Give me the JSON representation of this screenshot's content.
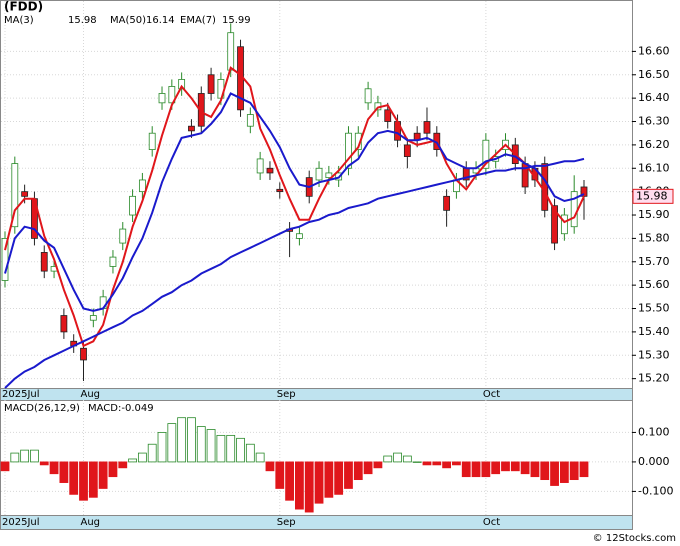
{
  "chart_data": {
    "type": "candlestick",
    "title": "(FDD)",
    "macd_title": "MACD(26,12,9)",
    "macd_label": "MACD:-0.049",
    "watermark": "© 12Stocks.com",
    "categories": [
      "2025Jul",
      null,
      null,
      null,
      null,
      null,
      null,
      null,
      "Aug",
      null,
      null,
      null,
      null,
      null,
      null,
      null,
      null,
      null,
      null,
      null,
      null,
      null,
      null,
      null,
      null,
      null,
      null,
      null,
      "Sep",
      null,
      null,
      null,
      null,
      null,
      null,
      null,
      null,
      null,
      null,
      null,
      null,
      null,
      null,
      null,
      null,
      null,
      null,
      null,
      null,
      "Oct",
      null,
      null,
      null,
      null,
      null,
      null,
      null,
      null,
      null,
      null
    ],
    "ohlc": {
      "open": [
        15.62,
        15.85,
        16.0,
        15.97,
        15.74,
        15.66,
        15.47,
        15.36,
        15.33,
        15.45,
        15.5,
        15.68,
        15.78,
        15.9,
        16.0,
        16.18,
        16.38,
        16.38,
        16.44,
        16.28,
        16.42,
        16.5,
        16.4,
        16.52,
        16.62,
        16.28,
        16.08,
        16.1,
        16.01,
        15.84,
        15.8,
        16.06,
        16.05,
        16.06,
        16.05,
        16.1,
        16.18,
        16.38,
        16.35,
        16.35,
        16.3,
        16.2,
        16.25,
        16.3,
        16.25,
        15.98,
        16.0,
        16.1,
        16.08,
        16.1,
        16.13,
        16.18,
        16.2,
        16.12,
        16.1,
        16.12,
        15.94,
        15.82,
        15.85,
        16.02
      ],
      "high": [
        15.83,
        16.15,
        16.03,
        16.0,
        15.77,
        15.71,
        15.5,
        15.39,
        15.36,
        15.5,
        15.58,
        15.75,
        15.87,
        16.01,
        16.08,
        16.28,
        16.45,
        16.48,
        16.51,
        16.31,
        16.45,
        16.53,
        16.51,
        16.72,
        16.65,
        16.36,
        16.17,
        16.13,
        16.04,
        15.87,
        15.85,
        16.09,
        16.13,
        16.11,
        16.11,
        16.28,
        16.28,
        16.47,
        16.41,
        16.38,
        16.33,
        16.23,
        16.28,
        16.36,
        16.28,
        16.01,
        16.08,
        16.13,
        16.13,
        16.25,
        16.18,
        16.25,
        16.23,
        16.15,
        16.13,
        16.15,
        15.97,
        15.93,
        16.07,
        16.05
      ],
      "low": [
        15.59,
        15.82,
        15.95,
        15.77,
        15.63,
        15.63,
        15.37,
        15.31,
        15.19,
        15.42,
        15.47,
        15.65,
        15.75,
        15.87,
        15.97,
        16.15,
        16.35,
        16.35,
        16.41,
        16.23,
        16.25,
        16.39,
        16.37,
        16.49,
        16.32,
        16.25,
        16.05,
        16.05,
        15.97,
        15.72,
        15.77,
        15.95,
        16.02,
        16.03,
        16.02,
        16.07,
        16.15,
        16.35,
        16.32,
        16.27,
        16.19,
        16.1,
        16.19,
        16.22,
        16.15,
        15.85,
        15.97,
        16.02,
        16.05,
        16.07,
        16.1,
        16.15,
        16.09,
        15.99,
        16.02,
        15.89,
        15.75,
        15.79,
        15.82,
        15.88
      ],
      "close": [
        15.8,
        16.12,
        15.98,
        15.8,
        15.66,
        15.68,
        15.4,
        15.34,
        15.28,
        15.47,
        15.55,
        15.72,
        15.84,
        15.98,
        16.05,
        16.25,
        16.42,
        16.45,
        16.48,
        16.26,
        16.28,
        16.42,
        16.48,
        16.68,
        16.35,
        16.33,
        16.14,
        16.08,
        16.0,
        15.83,
        15.82,
        15.98,
        16.1,
        16.08,
        16.08,
        16.25,
        16.25,
        16.44,
        16.38,
        16.3,
        16.22,
        16.15,
        16.22,
        16.25,
        16.18,
        15.92,
        16.05,
        16.05,
        16.1,
        16.22,
        16.15,
        16.22,
        16.12,
        16.02,
        16.05,
        15.92,
        15.78,
        15.9,
        16.0,
        15.98
      ],
      "up_color": "#2a8a2a",
      "down_color": "#e0161b"
    },
    "series": [
      {
        "name": "MA(3)",
        "color": "#e0161b",
        "values": [
          15.75,
          15.92,
          15.97,
          15.97,
          15.81,
          15.71,
          15.58,
          15.47,
          15.34,
          15.36,
          15.43,
          15.58,
          15.7,
          15.85,
          15.96,
          16.09,
          16.24,
          16.37,
          16.45,
          16.4,
          16.34,
          16.32,
          16.39,
          16.53,
          16.5,
          16.45,
          16.27,
          16.18,
          16.07,
          15.97,
          15.88,
          15.88,
          15.97,
          16.05,
          16.09,
          16.14,
          16.19,
          16.31,
          16.36,
          16.37,
          16.3,
          16.22,
          16.2,
          16.21,
          16.22,
          16.12,
          16.05,
          16.01,
          16.07,
          16.12,
          16.16,
          16.2,
          16.16,
          16.12,
          16.06,
          16.0,
          15.92,
          15.87,
          15.89,
          15.98
        ]
      },
      {
        "name": "MA(50)",
        "color": "#1a1acc",
        "values": [
          15.16,
          15.2,
          15.23,
          15.25,
          15.28,
          15.3,
          15.32,
          15.34,
          15.36,
          15.38,
          15.4,
          15.42,
          15.44,
          15.47,
          15.49,
          15.52,
          15.55,
          15.57,
          15.6,
          15.62,
          15.65,
          15.67,
          15.69,
          15.72,
          15.74,
          15.76,
          15.78,
          15.8,
          15.82,
          15.84,
          15.85,
          15.87,
          15.88,
          15.9,
          15.91,
          15.93,
          15.94,
          15.95,
          15.97,
          15.98,
          15.99,
          16.0,
          16.01,
          16.02,
          16.03,
          16.04,
          16.05,
          16.06,
          16.07,
          16.08,
          16.09,
          16.09,
          16.1,
          16.1,
          16.11,
          16.11,
          16.12,
          16.13,
          16.13,
          16.14
        ]
      },
      {
        "name": "EMA(7)",
        "color": "#1a1acc",
        "values": [
          15.65,
          15.8,
          15.85,
          15.84,
          15.79,
          15.76,
          15.67,
          15.58,
          15.5,
          15.49,
          15.5,
          15.56,
          15.63,
          15.72,
          15.8,
          15.91,
          16.04,
          16.14,
          16.23,
          16.24,
          16.25,
          16.29,
          16.34,
          16.42,
          16.4,
          16.38,
          16.32,
          16.26,
          16.19,
          16.1,
          16.03,
          16.02,
          16.04,
          16.05,
          16.06,
          16.11,
          16.14,
          16.21,
          16.25,
          16.26,
          16.25,
          16.22,
          16.22,
          16.23,
          16.21,
          16.14,
          16.12,
          16.1,
          16.1,
          16.13,
          16.14,
          16.16,
          16.15,
          16.12,
          16.1,
          16.05,
          15.98,
          15.96,
          15.97,
          15.99
        ]
      }
    ],
    "macd": {
      "values": [
        -0.03,
        0.03,
        0.04,
        0.04,
        -0.01,
        -0.04,
        -0.07,
        -0.11,
        -0.13,
        -0.12,
        -0.09,
        -0.05,
        -0.02,
        0.01,
        0.03,
        0.06,
        0.1,
        0.13,
        0.15,
        0.15,
        0.12,
        0.11,
        0.09,
        0.09,
        0.08,
        0.06,
        0.03,
        -0.03,
        -0.09,
        -0.13,
        -0.16,
        -0.17,
        -0.14,
        -0.12,
        -0.11,
        -0.09,
        -0.06,
        -0.04,
        -0.02,
        0.02,
        0.03,
        0.02,
        0.0,
        -0.01,
        -0.01,
        -0.02,
        -0.01,
        -0.05,
        -0.05,
        -0.05,
        -0.04,
        -0.03,
        -0.03,
        -0.04,
        -0.05,
        -0.06,
        -0.08,
        -0.07,
        -0.06,
        -0.05
      ],
      "axis": "y2"
    },
    "ylim": [
      15.16,
      16.76
    ],
    "yticks": [
      {
        "value": 15.2,
        "label": "15.20"
      },
      {
        "value": 15.3,
        "label": "15.30"
      },
      {
        "value": 15.4,
        "label": "15.40"
      },
      {
        "value": 15.5,
        "label": "15.50"
      },
      {
        "value": 15.6,
        "label": "15.60"
      },
      {
        "value": 15.7,
        "label": "15.70"
      },
      {
        "value": 15.8,
        "label": "15.80"
      },
      {
        "value": 15.9,
        "label": "15.90"
      },
      {
        "value": 16.0,
        "label": "16.00"
      },
      {
        "value": 16.1,
        "label": "16.10"
      },
      {
        "value": 16.2,
        "label": "16.20"
      },
      {
        "value": 16.3,
        "label": "16.30"
      },
      {
        "value": 16.4,
        "label": "16.40"
      },
      {
        "value": 16.5,
        "label": "16.50"
      },
      {
        "value": 16.6,
        "label": "16.60"
      }
    ],
    "y2lim": [
      -0.18,
      0.21
    ],
    "y2ticks": [
      {
        "value": 0.1,
        "label": "0.100"
      },
      {
        "value": 0,
        "label": "0.000"
      },
      {
        "value": -0.1,
        "label": "-0.100"
      }
    ],
    "grid": true
  }
}
